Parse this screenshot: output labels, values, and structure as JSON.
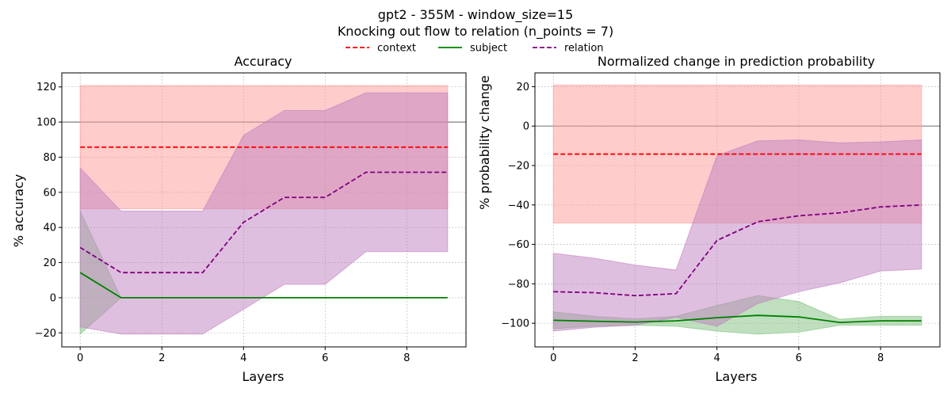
{
  "figure": {
    "title_line1": "gpt2 - 355M - window_size=15",
    "title_line2": "Knocking out flow to relation (n_points = 7)"
  },
  "legend": [
    {
      "label": "context",
      "color": "#ff0000",
      "dash": "dashed"
    },
    {
      "label": "subject",
      "color": "#008000",
      "dash": "solid"
    },
    {
      "label": "relation",
      "color": "#800080",
      "dash": "dashed"
    }
  ],
  "chart_data": [
    {
      "type": "line",
      "title": "Accuracy",
      "xlabel": "Layers",
      "ylabel": "% accuracy",
      "xlim": [
        -0.45,
        9.45
      ],
      "ylim": [
        -28,
        128
      ],
      "xticks": [
        0,
        2,
        4,
        6,
        8
      ],
      "yticks": [
        -20,
        0,
        20,
        40,
        60,
        80,
        100,
        120
      ],
      "reference_line": 100,
      "grid": true,
      "x": [
        0,
        1,
        2,
        3,
        4,
        5,
        6,
        7,
        8,
        9
      ],
      "series": [
        {
          "name": "context",
          "color": "#ff0000",
          "dash": "dashed",
          "values": [
            85.7,
            85.7,
            85.7,
            85.7,
            85.7,
            85.7,
            85.7,
            85.7,
            85.7,
            85.7
          ],
          "lower": [
            50.6,
            50.6,
            50.6,
            50.6,
            50.6,
            50.6,
            50.6,
            50.6,
            50.6,
            50.6
          ],
          "upper": [
            120.8,
            120.8,
            120.8,
            120.8,
            120.8,
            120.8,
            120.8,
            120.8,
            120.8,
            120.8
          ]
        },
        {
          "name": "subject",
          "color": "#008000",
          "dash": "solid",
          "values": [
            14.3,
            0,
            0,
            0,
            0,
            0,
            0,
            0,
            0,
            0
          ],
          "lower": [
            -20.7,
            0,
            0,
            0,
            0,
            0,
            0,
            0,
            0,
            0
          ],
          "upper": [
            49.3,
            0,
            0,
            0,
            0,
            0,
            0,
            0,
            0,
            0
          ]
        },
        {
          "name": "relation",
          "color": "#800080",
          "dash": "dashed",
          "values": [
            28.6,
            14.3,
            14.3,
            14.3,
            42.9,
            57.1,
            57.1,
            71.4,
            71.4,
            71.4
          ],
          "lower": [
            -16.6,
            -20.7,
            -20.7,
            -20.7,
            -6.6,
            7.6,
            7.6,
            26.2,
            26.2,
            26.2
          ],
          "upper": [
            73.8,
            49.3,
            49.3,
            49.3,
            92.4,
            106.6,
            106.6,
            116.6,
            116.6,
            116.6
          ]
        }
      ]
    },
    {
      "type": "line",
      "title": "Normalized change in prediction probability",
      "xlabel": "Layers",
      "ylabel": "% probability change",
      "xlim": [
        -0.45,
        9.45
      ],
      "ylim": [
        -112,
        27
      ],
      "xticks": [
        0,
        2,
        4,
        6,
        8
      ],
      "yticks": [
        -100,
        -80,
        -60,
        -40,
        -20,
        0,
        20
      ],
      "reference_line": 0,
      "grid": true,
      "x": [
        0,
        1,
        2,
        3,
        4,
        5,
        6,
        7,
        8,
        9
      ],
      "series": [
        {
          "name": "context",
          "color": "#ff0000",
          "dash": "dashed",
          "values": [
            -14.2,
            -14.2,
            -14.2,
            -14.2,
            -14.2,
            -14.2,
            -14.2,
            -14.2,
            -14.2,
            -14.2
          ],
          "lower": [
            -49.2,
            -49.2,
            -49.2,
            -49.2,
            -49.2,
            -49.2,
            -49.2,
            -49.2,
            -49.2,
            -49.2
          ],
          "upper": [
            20.8,
            20.8,
            20.8,
            20.8,
            20.8,
            20.8,
            20.8,
            20.8,
            20.8,
            20.8
          ]
        },
        {
          "name": "subject",
          "color": "#008000",
          "dash": "solid",
          "values": [
            -98.5,
            -99.0,
            -99.4,
            -98.8,
            -97.2,
            -96.0,
            -96.8,
            -99.6,
            -98.8,
            -98.8
          ],
          "lower": [
            -102.8,
            -101.5,
            -101.0,
            -101.5,
            -104.0,
            -105.5,
            -104.5,
            -101.0,
            -101.0,
            -101.0
          ],
          "upper": [
            -94.2,
            -96.5,
            -97.8,
            -96.5,
            -91.0,
            -86.0,
            -89.0,
            -98.0,
            -96.5,
            -96.5
          ]
        },
        {
          "name": "relation",
          "color": "#800080",
          "dash": "dashed",
          "values": [
            -84.0,
            -84.5,
            -86.0,
            -85.0,
            -58.0,
            -48.5,
            -45.5,
            -44.0,
            -41.0,
            -40.0
          ],
          "lower": [
            -104.0,
            -102.0,
            -101.0,
            -97.0,
            -101.5,
            -90.0,
            -84.0,
            -79.5,
            -73.5,
            -72.5
          ],
          "upper": [
            -64.5,
            -67.0,
            -70.5,
            -73.0,
            -15.0,
            -7.5,
            -7.0,
            -8.5,
            -8.0,
            -7.0
          ]
        }
      ]
    }
  ]
}
